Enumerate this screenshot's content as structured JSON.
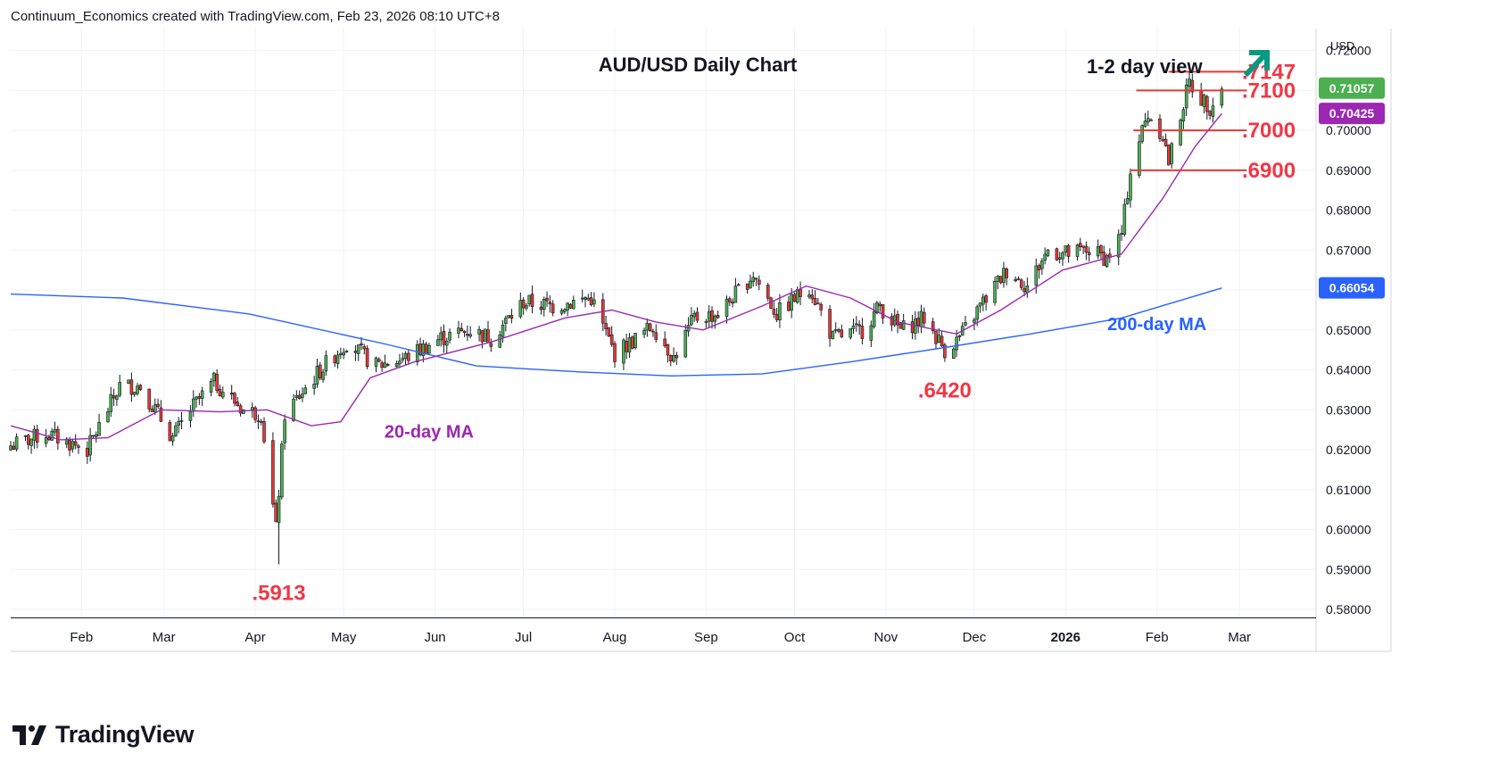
{
  "header": {
    "credit": "Continuum_Economics created with TradingView.com, Feb 23, 2026 08:10 UTC+8"
  },
  "branding": {
    "name": "TradingView"
  },
  "colors": {
    "up": "#4caf50",
    "down": "#e53935",
    "wick": "#131722",
    "ma20": "#9c27b0",
    "ma200": "#2962ff",
    "level": "#e53935",
    "label_red": "#f23645",
    "arrow": "#089981",
    "last_price_bg": "#4caf50",
    "ma20_bg": "#9c27b0",
    "ma200_bg": "#2962ff"
  },
  "chart_data": {
    "type": "candlestick",
    "title": "AUD/USD Daily Chart",
    "view_label": "1-2 day view",
    "view_direction": "up",
    "currency": "USD",
    "ylim": [
      0.578,
      0.7255
    ],
    "y_ticks": [
      "0.72000",
      "0.71000",
      "0.70000",
      "0.69000",
      "0.68000",
      "0.67000",
      "0.66000",
      "0.65000",
      "0.64000",
      "0.63000",
      "0.62000",
      "0.61000",
      "0.60000",
      "0.59000",
      "0.58000"
    ],
    "y_tick_values": [
      0.72,
      0.71,
      0.7,
      0.69,
      0.68,
      0.67,
      0.66,
      0.65,
      0.64,
      0.63,
      0.62,
      0.61,
      0.6,
      0.59,
      0.58
    ],
    "x_ticks": [
      {
        "label": "Feb",
        "date": "2025-02-01"
      },
      {
        "label": "Mar",
        "date": "2025-03-01"
      },
      {
        "label": "Apr",
        "date": "2025-04-01"
      },
      {
        "label": "May",
        "date": "2025-05-01"
      },
      {
        "label": "Jun",
        "date": "2025-06-01"
      },
      {
        "label": "Jul",
        "date": "2025-07-01"
      },
      {
        "label": "Aug",
        "date": "2025-08-01"
      },
      {
        "label": "Sep",
        "date": "2025-09-01"
      },
      {
        "label": "Oct",
        "date": "2025-10-01"
      },
      {
        "label": "Nov",
        "date": "2025-11-01"
      },
      {
        "label": "Dec",
        "date": "2025-12-01"
      },
      {
        "label": "2026",
        "date": "2026-01-01"
      },
      {
        "label": "Feb",
        "date": "2026-02-01"
      },
      {
        "label": "Mar",
        "date": "2026-03-01"
      }
    ],
    "x_start": "2025-01-08",
    "x_end": "2026-03-27",
    "close_path": [
      [
        "2025-01-08",
        0.621
      ],
      [
        "2025-01-20",
        0.624
      ],
      [
        "2025-02-03",
        0.62
      ],
      [
        "2025-02-14",
        0.636
      ],
      [
        "2025-02-21",
        0.636
      ],
      [
        "2025-03-04",
        0.623
      ],
      [
        "2025-03-10",
        0.63
      ],
      [
        "2025-03-18",
        0.637
      ],
      [
        "2025-03-28",
        0.63
      ],
      [
        "2025-04-03",
        0.629
      ],
      [
        "2025-04-08",
        0.6
      ],
      [
        "2025-04-11",
        0.629
      ],
      [
        "2025-04-22",
        0.639
      ],
      [
        "2025-05-02",
        0.647
      ],
      [
        "2025-05-12",
        0.641
      ],
      [
        "2025-05-22",
        0.643
      ],
      [
        "2025-06-03",
        0.648
      ],
      [
        "2025-06-13",
        0.65
      ],
      [
        "2025-06-20",
        0.648
      ],
      [
        "2025-07-01",
        0.657
      ],
      [
        "2025-07-11",
        0.656
      ],
      [
        "2025-07-24",
        0.658
      ],
      [
        "2025-08-01",
        0.644
      ],
      [
        "2025-08-14",
        0.651
      ],
      [
        "2025-08-21",
        0.643
      ],
      [
        "2025-08-28",
        0.653
      ],
      [
        "2025-09-05",
        0.654
      ],
      [
        "2025-09-17",
        0.664
      ],
      [
        "2025-09-25",
        0.654
      ],
      [
        "2025-10-06",
        0.661
      ],
      [
        "2025-10-14",
        0.648
      ],
      [
        "2025-10-24",
        0.65
      ],
      [
        "2025-10-30",
        0.656
      ],
      [
        "2025-11-06",
        0.65
      ],
      [
        "2025-11-14",
        0.653
      ],
      [
        "2025-11-21",
        0.645
      ],
      [
        "2025-11-26",
        0.648
      ],
      [
        "2025-12-03",
        0.656
      ],
      [
        "2025-12-12",
        0.665
      ],
      [
        "2025-12-19",
        0.661
      ],
      [
        "2025-12-26",
        0.67
      ],
      [
        "2026-01-02",
        0.669
      ],
      [
        "2026-01-09",
        0.67
      ],
      [
        "2026-01-15",
        0.668
      ],
      [
        "2026-01-20",
        0.674
      ],
      [
        "2026-01-23",
        0.69
      ],
      [
        "2026-01-27",
        0.7
      ],
      [
        "2026-01-29",
        0.704
      ],
      [
        "2026-02-03",
        0.699
      ],
      [
        "2026-02-05",
        0.692
      ],
      [
        "2026-02-09",
        0.704
      ],
      [
        "2026-02-12",
        0.712
      ],
      [
        "2026-02-16",
        0.708
      ],
      [
        "2026-02-19",
        0.706
      ],
      [
        "2026-02-23",
        0.7106
      ]
    ],
    "pins": [
      [
        "2025-04-09",
        0.5913,
        "low"
      ],
      [
        "2025-11-21",
        0.642,
        "low"
      ],
      [
        "2026-02-12",
        0.7147,
        "high"
      ]
    ],
    "ma20": [
      [
        "2025-01-08",
        0.626
      ],
      [
        "2025-01-25",
        0.6225
      ],
      [
        "2025-02-10",
        0.623
      ],
      [
        "2025-02-28",
        0.63
      ],
      [
        "2025-03-20",
        0.6295
      ],
      [
        "2025-04-05",
        0.63
      ],
      [
        "2025-04-20",
        0.626
      ],
      [
        "2025-04-30",
        0.627
      ],
      [
        "2025-05-10",
        0.638
      ],
      [
        "2025-05-25",
        0.642
      ],
      [
        "2025-06-20",
        0.647
      ],
      [
        "2025-07-15",
        0.653
      ],
      [
        "2025-07-31",
        0.655
      ],
      [
        "2025-08-15",
        0.652
      ],
      [
        "2025-08-31",
        0.65
      ],
      [
        "2025-09-20",
        0.656
      ],
      [
        "2025-10-05",
        0.661
      ],
      [
        "2025-10-20",
        0.658
      ],
      [
        "2025-11-05",
        0.652
      ],
      [
        "2025-11-25",
        0.649
      ],
      [
        "2025-12-10",
        0.655
      ],
      [
        "2025-12-31",
        0.665
      ],
      [
        "2026-01-20",
        0.669
      ],
      [
        "2026-02-03",
        0.683
      ],
      [
        "2026-02-14",
        0.696
      ],
      [
        "2026-02-23",
        0.7042
      ]
    ],
    "ma200": [
      [
        "2025-01-08",
        0.659
      ],
      [
        "2025-02-15",
        0.658
      ],
      [
        "2025-03-30",
        0.654
      ],
      [
        "2025-05-15",
        0.6465
      ],
      [
        "2025-06-15",
        0.641
      ],
      [
        "2025-07-20",
        0.6395
      ],
      [
        "2025-08-20",
        0.6385
      ],
      [
        "2025-09-20",
        0.639
      ],
      [
        "2025-10-20",
        0.642
      ],
      [
        "2025-11-20",
        0.6455
      ],
      [
        "2025-12-20",
        0.649
      ],
      [
        "2026-01-20",
        0.653
      ],
      [
        "2026-02-23",
        0.6605
      ]
    ],
    "levels": [
      {
        "value": 0.7147,
        "label": ".7147",
        "from": "2026-02-05"
      },
      {
        "value": 0.71,
        "label": ".7100",
        "from": "2026-01-25"
      },
      {
        "value": 0.7,
        "label": ".7000",
        "from": "2026-01-24"
      },
      {
        "value": 0.69,
        "label": ".6900",
        "from": "2026-01-23"
      }
    ],
    "lows": [
      {
        "value": 0.5913,
        "label": ".5913",
        "date": "2025-04-09"
      },
      {
        "value": 0.642,
        "label": ".6420",
        "date": "2025-11-21"
      }
    ],
    "annotations": [
      {
        "text": "20-day MA",
        "date": "2025-05-30",
        "value": 0.623,
        "color": "ma20"
      },
      {
        "text": "200-day MA",
        "date": "2026-02-01",
        "value": 0.65,
        "color": "ma200"
      }
    ],
    "price_labels": [
      {
        "text": "0.71057",
        "value": 0.71057,
        "color": "last_price_bg"
      },
      {
        "text": "0.70425",
        "value": 0.70425,
        "color": "ma20_bg"
      },
      {
        "text": "0.66054",
        "value": 0.66054,
        "color": "ma200_bg"
      }
    ]
  }
}
